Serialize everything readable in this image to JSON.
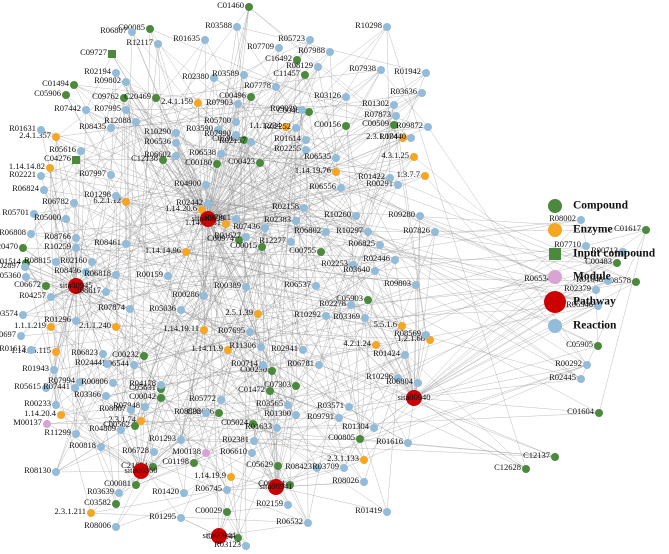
{
  "groups": [
    {
      "label": "Compound",
      "color": "#4b8a3c",
      "shape": "circle",
      "nodes": [
        "C01460",
        "C00085",
        "C16492",
        "C11457",
        "C05906",
        "C09762",
        "C20469",
        "C00496",
        "C00482",
        "C00156",
        "C05981",
        "C00180",
        "C00423",
        "C01617",
        "C20470",
        "C01514",
        "C06672",
        "C00974",
        "C00015",
        "C00755",
        "C05903",
        "C00483",
        "C08578",
        "C05905",
        "C01604",
        "C12628",
        "C12137",
        "C05631",
        "C00042",
        "C00562",
        "C00230",
        "C07303",
        "C01472",
        "C05024",
        "C21634",
        "C01198",
        "C00081",
        "C03582",
        "C00029",
        "C08604",
        "C00334",
        "C00805",
        "C05629",
        "C02606",
        "C00232",
        "C00509",
        "C01494",
        "C12138"
      ]
    },
    {
      "label": "Enzyme",
      "color": "#f5a623",
      "shape": "circle",
      "nodes": [
        "2.4.1.357",
        "1.14.14.82",
        "2.4.1.159",
        "1.14.19.76",
        "2.3.1.104",
        "4.3.1.25",
        "1.3.7.7",
        "6.2.1.12",
        "1.1.1.234",
        "1.14.20.6",
        "1.14.14.81",
        "1.14.14.96",
        "1.1.1.219",
        "2.1.1.240",
        "1.14.19.11",
        "2.5.1.39",
        "1.14.11.9",
        "5.5.1.6",
        "1.2.1.68",
        "4.2.1.24",
        "1.14.15.115",
        "2.3.1.74",
        "1.14.20.4",
        "2.3.1.133",
        "1.14.19.9",
        "2.3.1.211"
      ]
    },
    {
      "label": "Input compound",
      "color": "#4b8a3c",
      "shape": "square",
      "nodes": [
        "C09727",
        "C04276"
      ]
    },
    {
      "label": "Module",
      "color": "#d9a3d6",
      "shape": "circle",
      "nodes": [
        "M00137",
        "M00138"
      ]
    },
    {
      "label": "Pathway",
      "color": "#cc0000",
      "shape": "big-circle",
      "nodes": [
        "sita00945",
        "sita00999",
        "sita00360",
        "sita00941",
        "sita00940",
        "sita00944"
      ]
    },
    {
      "label": "Reaction",
      "color": "#92bcd9",
      "shape": "circle",
      "nodes": [
        "R06807",
        "R12117",
        "R03588",
        "R10298",
        "R01635",
        "R05723",
        "R07709",
        "R07988",
        "R08129",
        "R01942",
        "R07938",
        "R02194",
        "R09802",
        "R02380",
        "R07778",
        "R03589",
        "R07442",
        "R07995",
        "R12088",
        "R07903",
        "R01631",
        "R08435",
        "R10290",
        "R03590",
        "R05700",
        "R09039",
        "R03126",
        "R03636",
        "R01302",
        "R07873",
        "R09872",
        "R05616",
        "R06536",
        "R02157",
        "R06538",
        "R06602",
        "R02252",
        "R07990",
        "R01614",
        "R02255",
        "R06535",
        "R07440",
        "R02221",
        "R06824",
        "R06782",
        "R07997",
        "R01298",
        "R04900",
        "R00291",
        "R01422",
        "R06556",
        "R02158",
        "R05701",
        "R05000",
        "R02442",
        "R02383",
        "R10260",
        "R09280",
        "R08002",
        "R07826",
        "R10297",
        "R07911",
        "R07436",
        "R01627",
        "R06808",
        "R08766",
        "R10259",
        "R08461",
        "R12277",
        "R06802",
        "R06825",
        "R07710",
        "R00713",
        "R02897",
        "R08815",
        "R02160",
        "R00159",
        "R02253",
        "R02446",
        "R03640",
        "R09803",
        "R01648",
        "R05360",
        "R04257",
        "R08617",
        "R08436",
        "R06818",
        "R02379",
        "R06534",
        "R06546",
        "R06537",
        "R02278",
        "R03574",
        "R01296",
        "R00697",
        "R07874",
        "R05036",
        "R00286",
        "R00389",
        "R10292",
        "R03369",
        "R08569",
        "R01613",
        "R06823",
        "R06544",
        "R02444",
        "R11306",
        "R07695",
        "R02941",
        "R06781",
        "R01424",
        "R00292",
        "R02445",
        "R01943",
        "R07994",
        "R00806",
        "R04178",
        "R00714",
        "R10296",
        "R05615",
        "R07441",
        "R03366",
        "R07948",
        "R05772",
        "R03565",
        "R03571",
        "R06804",
        "R00233",
        "R08007",
        "R08838",
        "R01300",
        "R09791",
        "R01304",
        "R01633",
        "R11299",
        "R04809",
        "R01293",
        "R01616",
        "R00818",
        "R06728",
        "R02381",
        "R06610",
        "R08130",
        "R08423",
        "R03709",
        "R08026",
        "R03639",
        "R06745",
        "R02159",
        "R01419",
        "R08006",
        "R01295",
        "R03123",
        "R06532",
        "R01420"
      ]
    }
  ]
}
